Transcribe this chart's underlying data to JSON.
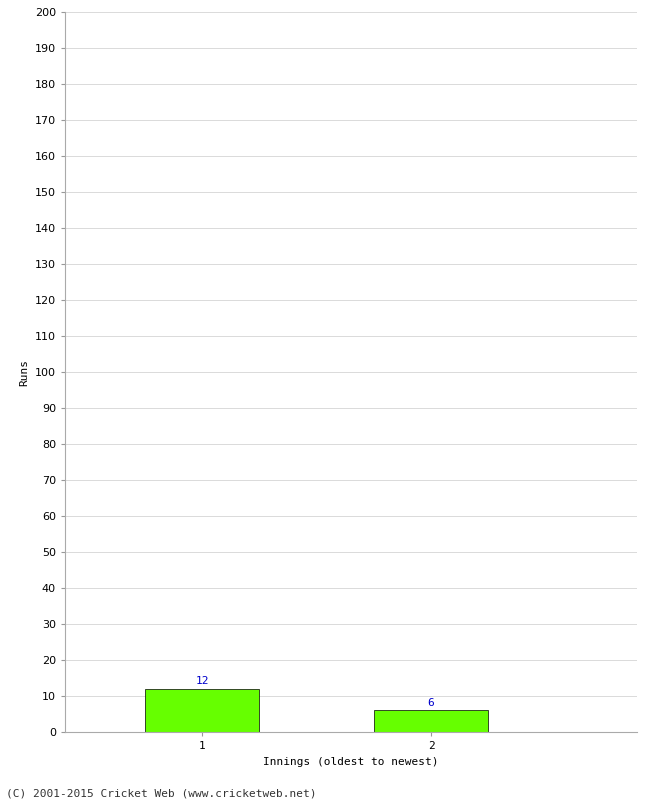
{
  "xlabel": "Innings (oldest to newest)",
  "ylabel": "Runs",
  "categories": [
    "1",
    "2"
  ],
  "values": [
    12,
    6
  ],
  "bar_color": "#66ff00",
  "bar_edgecolor": "#000000",
  "value_color": "#0000cc",
  "ylim": [
    0,
    200
  ],
  "yticks": [
    0,
    10,
    20,
    30,
    40,
    50,
    60,
    70,
    80,
    90,
    100,
    110,
    120,
    130,
    140,
    150,
    160,
    170,
    180,
    190,
    200
  ],
  "background_color": "#ffffff",
  "grid_color": "#cccccc",
  "footer": "(C) 2001-2015 Cricket Web (www.cricketweb.net)",
  "bar_width": 0.5,
  "value_fontsize": 8,
  "axis_fontsize": 8,
  "ylabel_fontsize": 8,
  "xlabel_fontsize": 8,
  "footer_fontsize": 8
}
